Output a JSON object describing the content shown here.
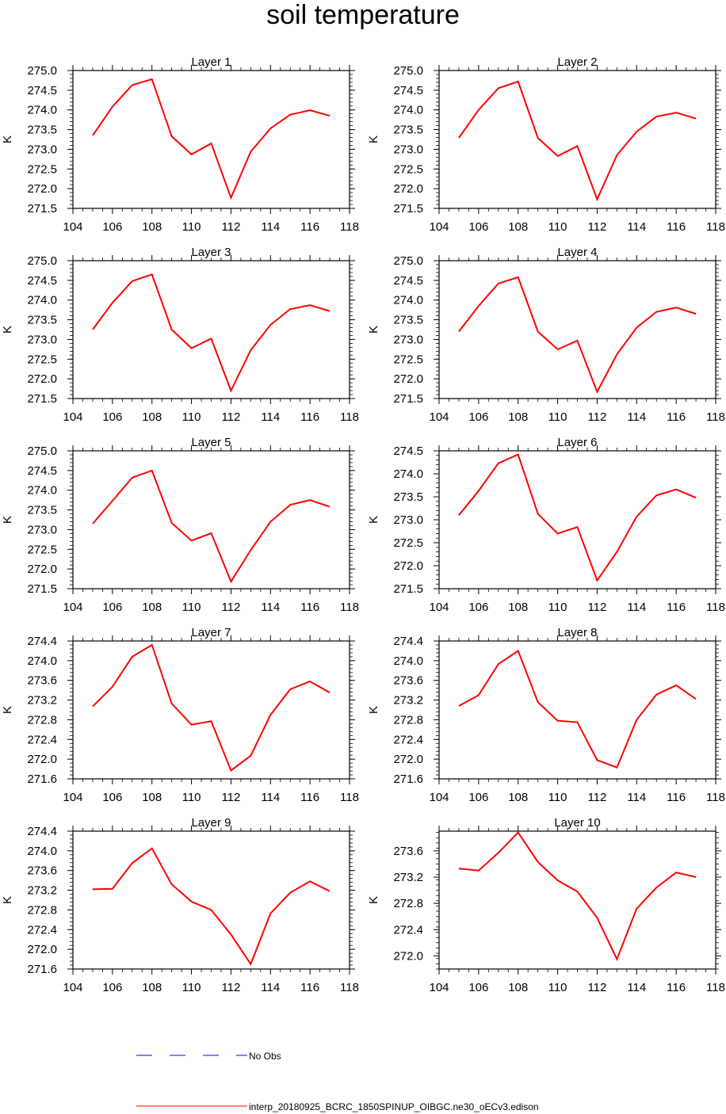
{
  "title": "soil temperature",
  "chart_data": [
    {
      "type": "line",
      "title": "Layer 1",
      "xlabel": "",
      "ylabel": "K",
      "xlim": [
        104,
        118
      ],
      "ylim": [
        271.5,
        275.0
      ],
      "xticks": [
        104,
        106,
        108,
        110,
        112,
        114,
        116,
        118
      ],
      "yticks": [
        271.5,
        272.0,
        272.5,
        273.0,
        273.5,
        274.0,
        274.5,
        275.0
      ],
      "ydecimals": 1,
      "series": [
        {
          "name": "interp_20180925_BCRC_1850SPINUP_OIBGC.ne30_oECv3.edison",
          "x": [
            105,
            106,
            107,
            108,
            109,
            110,
            111,
            112,
            113,
            114,
            115,
            116,
            117
          ],
          "values": [
            273.35,
            274.08,
            274.63,
            274.78,
            273.33,
            272.87,
            273.15,
            271.77,
            272.94,
            273.53,
            273.88,
            273.99,
            273.85
          ]
        }
      ]
    },
    {
      "type": "line",
      "title": "Layer 2",
      "xlabel": "",
      "ylabel": "K",
      "xlim": [
        104,
        118
      ],
      "ylim": [
        271.5,
        275.0
      ],
      "xticks": [
        104,
        106,
        108,
        110,
        112,
        114,
        116,
        118
      ],
      "yticks": [
        271.5,
        272.0,
        272.5,
        273.0,
        273.5,
        274.0,
        274.5,
        275.0
      ],
      "ydecimals": 1,
      "series": [
        {
          "name": "interp_20180925_BCRC_1850SPINUP_OIBGC.ne30_oECv3.edison",
          "x": [
            105,
            106,
            107,
            108,
            109,
            110,
            111,
            112,
            113,
            114,
            115,
            116,
            117
          ],
          "values": [
            273.29,
            274.0,
            274.55,
            274.72,
            273.29,
            272.83,
            273.08,
            271.73,
            272.85,
            273.45,
            273.83,
            273.93,
            273.78
          ]
        }
      ]
    },
    {
      "type": "line",
      "title": "Layer 3",
      "xlabel": "",
      "ylabel": "K",
      "xlim": [
        104,
        118
      ],
      "ylim": [
        271.5,
        275.0
      ],
      "xticks": [
        104,
        106,
        108,
        110,
        112,
        114,
        116,
        118
      ],
      "yticks": [
        271.5,
        272.0,
        272.5,
        273.0,
        273.5,
        274.0,
        274.5,
        275.0
      ],
      "ydecimals": 1,
      "series": [
        {
          "name": "interp_20180925_BCRC_1850SPINUP_OIBGC.ne30_oECv3.edison",
          "x": [
            105,
            106,
            107,
            108,
            109,
            110,
            111,
            112,
            113,
            114,
            115,
            116,
            117
          ],
          "values": [
            273.25,
            273.93,
            274.48,
            274.65,
            273.25,
            272.78,
            273.02,
            271.7,
            272.73,
            273.37,
            273.77,
            273.87,
            273.72
          ]
        }
      ]
    },
    {
      "type": "line",
      "title": "Layer 4",
      "xlabel": "",
      "ylabel": "K",
      "xlim": [
        104,
        118
      ],
      "ylim": [
        271.5,
        275.0
      ],
      "xticks": [
        104,
        106,
        108,
        110,
        112,
        114,
        116,
        118
      ],
      "yticks": [
        271.5,
        272.0,
        272.5,
        273.0,
        273.5,
        274.0,
        274.5,
        275.0
      ],
      "ydecimals": 1,
      "series": [
        {
          "name": "interp_20180925_BCRC_1850SPINUP_OIBGC.ne30_oECv3.edison",
          "x": [
            105,
            106,
            107,
            108,
            109,
            110,
            111,
            112,
            113,
            114,
            115,
            116,
            117
          ],
          "values": [
            273.2,
            273.85,
            274.42,
            274.58,
            273.2,
            272.75,
            272.97,
            271.67,
            272.62,
            273.3,
            273.7,
            273.81,
            273.65
          ]
        }
      ]
    },
    {
      "type": "line",
      "title": "Layer 5",
      "xlabel": "",
      "ylabel": "K",
      "xlim": [
        104,
        118
      ],
      "ylim": [
        271.5,
        275.0
      ],
      "xticks": [
        104,
        106,
        108,
        110,
        112,
        114,
        116,
        118
      ],
      "yticks": [
        271.5,
        272.0,
        272.5,
        273.0,
        273.5,
        274.0,
        274.5,
        275.0
      ],
      "ydecimals": 1,
      "series": [
        {
          "name": "interp_20180925_BCRC_1850SPINUP_OIBGC.ne30_oECv3.edison",
          "x": [
            105,
            106,
            107,
            108,
            109,
            110,
            111,
            112,
            113,
            114,
            115,
            116,
            117
          ],
          "values": [
            273.15,
            273.73,
            274.32,
            274.5,
            273.17,
            272.72,
            272.91,
            271.68,
            272.48,
            273.2,
            273.63,
            273.75,
            273.58
          ]
        }
      ]
    },
    {
      "type": "line",
      "title": "Layer 6",
      "xlabel": "",
      "ylabel": "K",
      "xlim": [
        104,
        118
      ],
      "ylim": [
        271.5,
        274.5
      ],
      "xticks": [
        104,
        106,
        108,
        110,
        112,
        114,
        116,
        118
      ],
      "yticks": [
        271.5,
        272.0,
        272.5,
        273.0,
        273.5,
        274.0,
        274.5
      ],
      "ydecimals": 1,
      "series": [
        {
          "name": "interp_20180925_BCRC_1850SPINUP_OIBGC.ne30_oECv3.edison",
          "x": [
            105,
            106,
            107,
            108,
            109,
            110,
            111,
            112,
            113,
            114,
            115,
            116,
            117
          ],
          "values": [
            273.1,
            273.63,
            274.23,
            274.42,
            273.13,
            272.7,
            272.84,
            271.68,
            272.3,
            273.07,
            273.53,
            273.66,
            273.48
          ]
        }
      ]
    },
    {
      "type": "line",
      "title": "Layer 7",
      "xlabel": "",
      "ylabel": "K",
      "xlim": [
        104,
        118
      ],
      "ylim": [
        271.6,
        274.4
      ],
      "xticks": [
        104,
        106,
        108,
        110,
        112,
        114,
        116,
        118
      ],
      "yticks": [
        271.6,
        272.0,
        272.4,
        272.8,
        273.2,
        273.6,
        274.0,
        274.4
      ],
      "ydecimals": 1,
      "series": [
        {
          "name": "interp_20180925_BCRC_1850SPINUP_OIBGC.ne30_oECv3.edison",
          "x": [
            105,
            106,
            107,
            108,
            109,
            110,
            111,
            112,
            113,
            114,
            115,
            116,
            117
          ],
          "values": [
            273.07,
            273.47,
            274.08,
            274.32,
            273.13,
            272.7,
            272.77,
            271.77,
            272.07,
            272.9,
            273.42,
            273.58,
            273.35
          ]
        }
      ]
    },
    {
      "type": "line",
      "title": "Layer 8",
      "xlabel": "",
      "ylabel": "K",
      "xlim": [
        104,
        118
      ],
      "ylim": [
        271.6,
        274.4
      ],
      "xticks": [
        104,
        106,
        108,
        110,
        112,
        114,
        116,
        118
      ],
      "yticks": [
        271.6,
        272.0,
        272.4,
        272.8,
        273.2,
        273.6,
        274.0,
        274.4
      ],
      "ydecimals": 1,
      "series": [
        {
          "name": "interp_20180925_BCRC_1850SPINUP_OIBGC.ne30_oECv3.edison",
          "x": [
            105,
            106,
            107,
            108,
            109,
            110,
            111,
            112,
            113,
            114,
            115,
            116,
            117
          ],
          "values": [
            273.08,
            273.3,
            273.93,
            274.2,
            273.16,
            272.78,
            272.75,
            271.98,
            271.83,
            272.8,
            273.31,
            273.5,
            273.22
          ]
        }
      ]
    },
    {
      "type": "line",
      "title": "Layer 9",
      "xlabel": "",
      "ylabel": "K",
      "xlim": [
        104,
        118
      ],
      "ylim": [
        271.6,
        274.4
      ],
      "xticks": [
        104,
        106,
        108,
        110,
        112,
        114,
        116,
        118
      ],
      "yticks": [
        271.6,
        272.0,
        272.4,
        272.8,
        273.2,
        273.6,
        274.0,
        274.4
      ],
      "ydecimals": 1,
      "series": [
        {
          "name": "interp_20180925_BCRC_1850SPINUP_OIBGC.ne30_oECv3.edison",
          "x": [
            105,
            106,
            107,
            108,
            109,
            110,
            111,
            112,
            113,
            114,
            115,
            116,
            117
          ],
          "values": [
            273.22,
            273.23,
            273.75,
            274.05,
            273.32,
            272.97,
            272.8,
            272.3,
            271.7,
            272.73,
            273.15,
            273.38,
            273.18
          ]
        }
      ]
    },
    {
      "type": "line",
      "title": "Layer 10",
      "xlabel": "",
      "ylabel": "K",
      "xlim": [
        104,
        118
      ],
      "ylim": [
        271.8,
        273.9
      ],
      "xticks": [
        104,
        106,
        108,
        110,
        112,
        114,
        116,
        118
      ],
      "yticks": [
        272.0,
        272.4,
        272.8,
        273.2,
        273.6
      ],
      "ydecimals": 1,
      "series": [
        {
          "name": "interp_20180925_BCRC_1850SPINUP_OIBGC.ne30_oECv3.edison",
          "x": [
            105,
            106,
            107,
            108,
            109,
            110,
            111,
            112,
            113,
            114,
            115,
            116,
            117
          ],
          "values": [
            273.33,
            273.3,
            273.57,
            273.88,
            273.43,
            273.15,
            272.98,
            272.58,
            271.95,
            272.72,
            273.04,
            273.27,
            273.2
          ]
        }
      ]
    }
  ],
  "legend": {
    "items": [
      {
        "label": "No Obs",
        "color": "#0000ff",
        "style": "dashed"
      },
      {
        "label": "interp_20180925_BCRC_1850SPINUP_OIBGC.ne30_oECv3.edison",
        "color": "#ff0000",
        "style": "solid"
      }
    ]
  }
}
